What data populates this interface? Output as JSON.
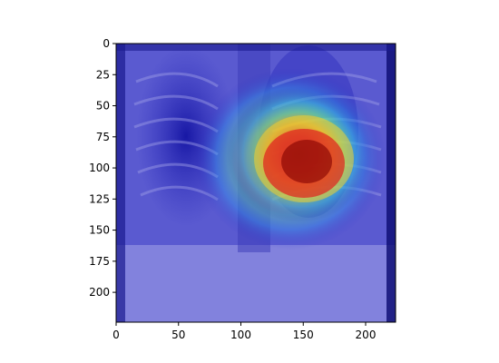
{
  "chart_data": {
    "type": "heatmap",
    "title": "",
    "xlabel": "",
    "ylabel": "",
    "image_size": [
      224,
      224
    ],
    "xlim": [
      0,
      224
    ],
    "ylim": [
      224,
      0
    ],
    "y_axis_inverted": true,
    "xticks": [
      0,
      50,
      100,
      150,
      200
    ],
    "xtick_labels": [
      "0",
      "50",
      "100",
      "150",
      "200"
    ],
    "yticks": [
      0,
      25,
      50,
      75,
      100,
      125,
      150,
      175,
      200
    ],
    "ytick_labels": [
      "0",
      "25",
      "50",
      "75",
      "100",
      "125",
      "150",
      "175",
      "200"
    ],
    "colormap": "jet",
    "overlay_alpha": 0.5,
    "background": "grayscale chest x-ray",
    "activation_regions": [
      {
        "level": "high",
        "center": [
          150,
          105
        ],
        "radius": [
          28,
          22
        ]
      },
      {
        "level": "medium",
        "center": [
          140,
          115
        ],
        "radius": [
          45,
          40
        ]
      },
      {
        "level": "low",
        "center": [
          135,
          110
        ],
        "radius": [
          70,
          60
        ]
      }
    ],
    "grid": false,
    "legend": "none"
  }
}
